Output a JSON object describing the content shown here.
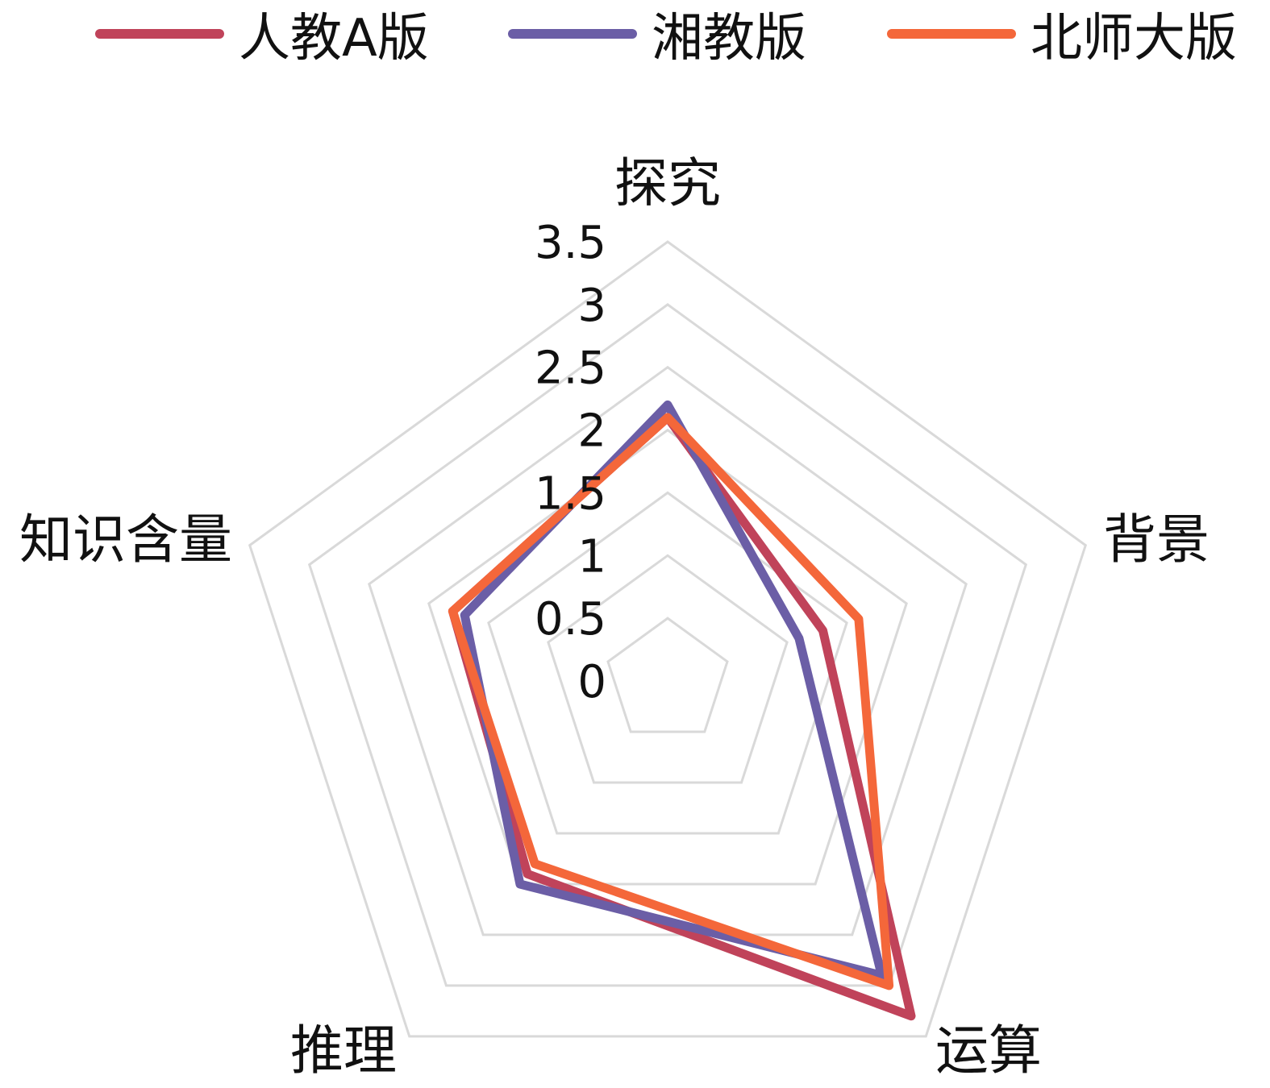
{
  "chart_data": {
    "type": "radar",
    "categories": [
      "探究",
      "背景",
      "运算",
      "推理",
      "知识含量"
    ],
    "rlim": [
      0,
      3.5
    ],
    "ticks": [
      "0",
      "0.5",
      "1",
      "1.5",
      "2",
      "2.5",
      "3",
      "3.5"
    ],
    "tick_values": [
      0,
      0.5,
      1,
      1.5,
      2,
      2.5,
      3,
      3.5
    ],
    "grid": true,
    "legend_position": "top",
    "series": [
      {
        "name": "人教A版",
        "color": "#c0435a",
        "values": [
          2.1,
          1.3,
          3.3,
          1.9,
          1.8
        ]
      },
      {
        "name": "湘教版",
        "color": "#6b5ea6",
        "values": [
          2.2,
          1.1,
          2.9,
          2.0,
          1.7
        ]
      },
      {
        "name": "北师大版",
        "color": "#f4673a",
        "values": [
          2.1,
          1.6,
          3.0,
          1.8,
          1.8
        ]
      }
    ]
  }
}
